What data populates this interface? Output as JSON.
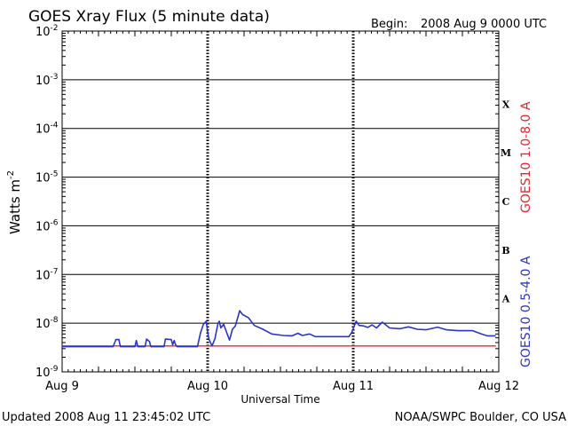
{
  "title": "GOES Xray Flux (5 minute data)",
  "begin": {
    "label": "Begin:",
    "value": "2008 Aug 9 0000 UTC"
  },
  "footer": {
    "updated": "Updated 2008 Aug 11 23:45:02 UTC",
    "source": "NOAA/SWPC Boulder, CO USA"
  },
  "flare_classes": [
    "X",
    "M",
    "C",
    "B",
    "A"
  ],
  "colors": {
    "long": "#e8252b",
    "short": "#2a35c8",
    "grid": "#000000"
  },
  "chart_data": {
    "type": "line",
    "title": "GOES Xray Flux (5 minute data)",
    "xlabel": "Universal Time",
    "ylabel": "Watts m",
    "ylabel_sup": "-2",
    "y_scale": "log",
    "ylim": [
      1e-09,
      0.01
    ],
    "xlim": [
      0,
      3
    ],
    "x_unit": "days since 2008 Aug 9 0000 UTC",
    "y_tick_base": "10",
    "y_ticks": [
      -9,
      -8,
      -7,
      -6,
      -5,
      -4,
      -3,
      -2
    ],
    "x_ticks": [
      {
        "x": 0,
        "label": "Aug 9"
      },
      {
        "x": 1,
        "label": "Aug 10"
      },
      {
        "x": 2,
        "label": "Aug 11"
      },
      {
        "x": 3,
        "label": "Aug 12"
      }
    ],
    "grid": "horizontal at each decade; dashed vertical at day boundaries",
    "series": [
      {
        "name": "GOES10 1.0-8.0 A",
        "color": "#e8252b",
        "points": [
          [
            0.0,
            3.4e-09
          ],
          [
            0.2,
            3.4e-09
          ],
          [
            0.5,
            3.4e-09
          ],
          [
            1.0,
            3.4e-09
          ],
          [
            1.5,
            3.4e-09
          ],
          [
            2.0,
            3.4e-09
          ],
          [
            2.5,
            3.4e-09
          ],
          [
            2.98,
            3.4e-09
          ]
        ]
      },
      {
        "name": "GOES10 0.5-4.0 A",
        "color": "#2a35c8",
        "points": [
          [
            0.0,
            3.3e-09
          ],
          [
            0.35,
            3.3e-09
          ],
          [
            0.37,
            4.6e-09
          ],
          [
            0.39,
            4.6e-09
          ],
          [
            0.4,
            3.3e-09
          ],
          [
            0.5,
            3.3e-09
          ],
          [
            0.51,
            4.4e-09
          ],
          [
            0.52,
            3.3e-09
          ],
          [
            0.57,
            3.3e-09
          ],
          [
            0.58,
            4.7e-09
          ],
          [
            0.6,
            4.2e-09
          ],
          [
            0.61,
            3.3e-09
          ],
          [
            0.7,
            3.3e-09
          ],
          [
            0.71,
            4.7e-09
          ],
          [
            0.75,
            4.6e-09
          ],
          [
            0.76,
            3.6e-09
          ],
          [
            0.77,
            4.4e-09
          ],
          [
            0.78,
            3.6e-09
          ],
          [
            0.79,
            3.3e-09
          ],
          [
            0.93,
            3.3e-09
          ],
          [
            0.95,
            6.2e-09
          ],
          [
            0.97,
            9.4e-09
          ],
          [
            0.99,
            1.1e-08
          ],
          [
            1.0,
            6.5e-09
          ],
          [
            1.01,
            4.6e-09
          ],
          [
            1.03,
            3.4e-09
          ],
          [
            1.05,
            4.8e-09
          ],
          [
            1.07,
            9.7e-09
          ],
          [
            1.08,
            1.1e-08
          ],
          [
            1.09,
            8e-09
          ],
          [
            1.11,
            9.5e-09
          ],
          [
            1.13,
            6.5e-09
          ],
          [
            1.15,
            4.5e-09
          ],
          [
            1.17,
            7.5e-09
          ],
          [
            1.19,
            8.8e-09
          ],
          [
            1.21,
            1.4e-08
          ],
          [
            1.22,
            1.8e-08
          ],
          [
            1.24,
            1.5e-08
          ],
          [
            1.28,
            1.3e-08
          ],
          [
            1.32,
            9e-09
          ],
          [
            1.38,
            7.5e-09
          ],
          [
            1.44,
            6e-09
          ],
          [
            1.52,
            5.6e-09
          ],
          [
            1.58,
            5.5e-09
          ],
          [
            1.62,
            6.2e-09
          ],
          [
            1.65,
            5.6e-09
          ],
          [
            1.7,
            6e-09
          ],
          [
            1.74,
            5.3e-09
          ],
          [
            1.8,
            5.3e-09
          ],
          [
            1.9,
            5.3e-09
          ],
          [
            1.97,
            5.3e-09
          ],
          [
            1.99,
            6.5e-09
          ],
          [
            2.02,
            1.1e-08
          ],
          [
            2.04,
            9e-09
          ],
          [
            2.07,
            8.8e-09
          ],
          [
            2.1,
            8.2e-09
          ],
          [
            2.13,
            9.2e-09
          ],
          [
            2.16,
            8e-09
          ],
          [
            2.2,
            1.05e-08
          ],
          [
            2.25,
            8e-09
          ],
          [
            2.32,
            7.7e-09
          ],
          [
            2.38,
            8.4e-09
          ],
          [
            2.44,
            7.5e-09
          ],
          [
            2.5,
            7.3e-09
          ],
          [
            2.58,
            8.3e-09
          ],
          [
            2.64,
            7.3e-09
          ],
          [
            2.72,
            7e-09
          ],
          [
            2.82,
            7e-09
          ],
          [
            2.88,
            6e-09
          ],
          [
            2.92,
            5.5e-09
          ],
          [
            2.98,
            5.5e-09
          ]
        ]
      }
    ]
  }
}
